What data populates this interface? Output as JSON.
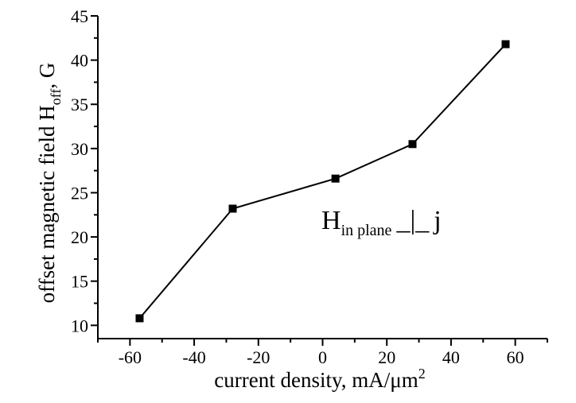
{
  "chart_data": {
    "type": "line",
    "xlabel_main": "current density, mA/μm",
    "xlabel_sup": "2",
    "ylabel_main": "offset magnetic field H",
    "ylabel_sub": "off",
    "ylabel_tail": ", G",
    "xlim": [
      -70,
      70
    ],
    "ylim": [
      8.5,
      45
    ],
    "xticks": [
      -60,
      -40,
      -20,
      0,
      20,
      40,
      60
    ],
    "yticks": [
      10,
      15,
      20,
      25,
      30,
      35,
      40,
      45
    ],
    "x": [
      -57,
      -28,
      4,
      28,
      57
    ],
    "y": [
      10.8,
      23.2,
      26.6,
      30.5,
      41.8
    ],
    "marker": "square",
    "annotation": {
      "main": "H",
      "sub": "in plane",
      "perp": "_|_",
      "tail": "j"
    }
  }
}
